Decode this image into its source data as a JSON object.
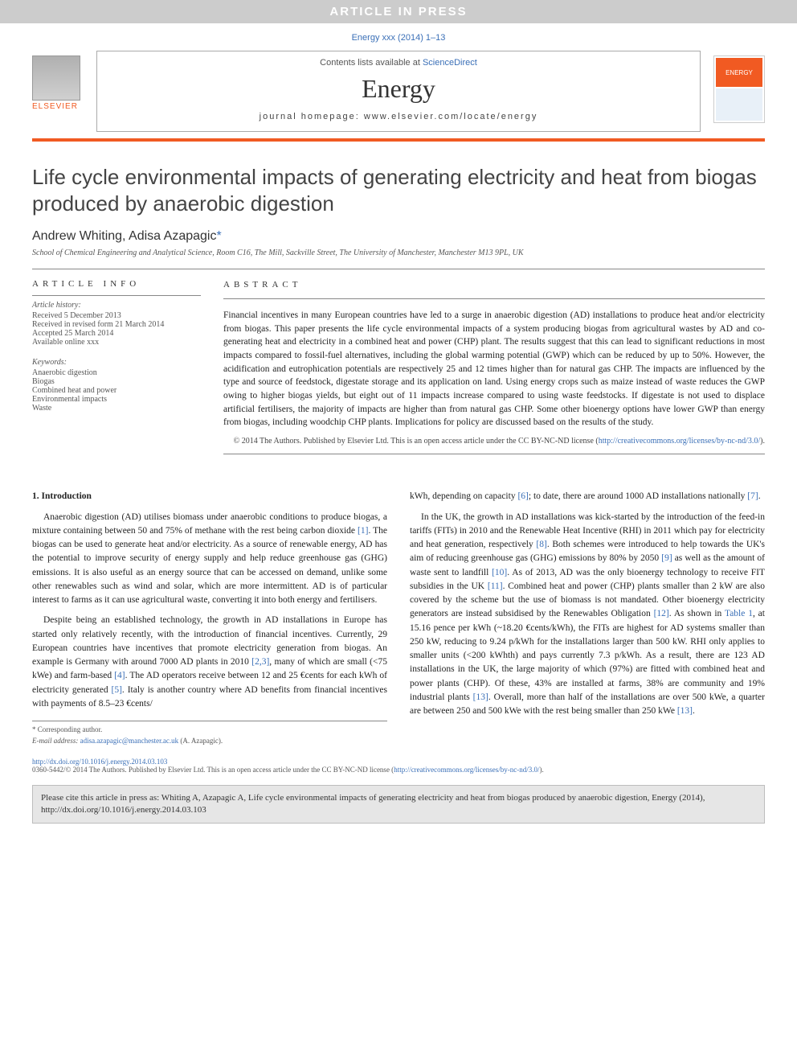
{
  "banner": "ARTICLE IN PRESS",
  "header_meta": "Energy xxx (2014) 1–13",
  "contents_line_pre": "Contents lists available at ",
  "contents_line_link": "ScienceDirect",
  "journal_name": "Energy",
  "homepage_line": "journal homepage: www.elsevier.com/locate/energy",
  "elsevier_label": "ELSEVIER",
  "cover_label": "ENERGY",
  "title": "Life cycle environmental impacts of generating electricity and heat from biogas produced by anaerobic digestion",
  "authors_pre": "Andrew Whiting, Adisa Azapagic",
  "corr_marker": "*",
  "affiliation": "School of Chemical Engineering and Analytical Science, Room C16, The Mill, Sackville Street, The University of Manchester, Manchester M13 9PL, UK",
  "info_head": "ARTICLE INFO",
  "abs_head": "ABSTRACT",
  "history": {
    "label": "Article history:",
    "received": "Received 5 December 2013",
    "revised": "Received in revised form 21 March 2014",
    "accepted": "Accepted 25 March 2014",
    "online": "Available online xxx"
  },
  "keywords": {
    "label": "Keywords:",
    "items": [
      "Anaerobic digestion",
      "Biogas",
      "Combined heat and power",
      "Environmental impacts",
      "Waste"
    ]
  },
  "abstract": "Financial incentives in many European countries have led to a surge in anaerobic digestion (AD) installations to produce heat and/or electricity from biogas. This paper presents the life cycle environmental impacts of a system producing biogas from agricultural wastes by AD and co-generating heat and electricity in a combined heat and power (CHP) plant. The results suggest that this can lead to significant reductions in most impacts compared to fossil-fuel alternatives, including the global warming potential (GWP) which can be reduced by up to 50%. However, the acidification and eutrophication potentials are respectively 25 and 12 times higher than for natural gas CHP. The impacts are influenced by the type and source of feedstock, digestate storage and its application on land. Using energy crops such as maize instead of waste reduces the GWP owing to higher biogas yields, but eight out of 11 impacts increase compared to using waste feedstocks. If digestate is not used to displace artificial fertilisers, the majority of impacts are higher than from natural gas CHP. Some other bioenergy options have lower GWP than energy from biogas, including woodchip CHP plants. Implications for policy are discussed based on the results of the study.",
  "copyright_line": "© 2014 The Authors. Published by Elsevier Ltd. This is an open access article under the CC BY-NC-ND license (",
  "copyright_link": "http://creativecommons.org/licenses/by-nc-nd/3.0/",
  "copyright_close": ").",
  "sec1_head": "1. Introduction",
  "col1_p1": "Anaerobic digestion (AD) utilises biomass under anaerobic conditions to produce biogas, a mixture containing between 50 and 75% of methane with the rest being carbon dioxide [1]. The biogas can be used to generate heat and/or electricity. As a source of renewable energy, AD has the potential to improve security of energy supply and help reduce greenhouse gas (GHG) emissions. It is also useful as an energy source that can be accessed on demand, unlike some other renewables such as wind and solar, which are more intermittent. AD is of particular interest to farms as it can use agricultural waste, converting it into both energy and fertilisers.",
  "col1_p2": "Despite being an established technology, the growth in AD installations in Europe has started only relatively recently, with the introduction of financial incentives. Currently, 29 European countries have incentives that promote electricity generation from biogas. An example is Germany with around 7000 AD plants in 2010 [2,3], many of which are small (<75 kWe) and farm-based [4]. The AD operators receive between 12 and 25 €cents for each kWh of electricity generated [5]. Italy is another country where AD benefits from financial incentives with payments of 8.5–23 €cents/",
  "col2_p0_tail": "kWh, depending on capacity [6]; to date, there are around 1000 AD installations nationally [7].",
  "col2_p1": "In the UK, the growth in AD installations was kick-started by the introduction of the feed-in tariffs (FITs) in 2010 and the Renewable Heat Incentive (RHI) in 2011 which pay for electricity and heat generation, respectively [8]. Both schemes were introduced to help towards the UK's aim of reducing greenhouse gas (GHG) emissions by 80% by 2050 [9] as well as the amount of waste sent to landfill [10]. As of 2013, AD was the only bioenergy technology to receive FIT subsidies in the UK [11]. Combined heat and power (CHP) plants smaller than 2 kW are also covered by the scheme but the use of biomass is not mandated. Other bioenergy electricity generators are instead subsidised by the Renewables Obligation [12]. As shown in Table 1, at 15.16 pence per kWh (~18.20 €cents/kWh), the FITs are highest for AD systems smaller than 250 kW, reducing to 9.24 p/kWh for the installations larger than 500 kW. RHI only applies to smaller units (<200 kWhth) and pays currently 7.3 p/kWh. As a result, there are 123 AD installations in the UK, the large majority of which (97%) are fitted with combined heat and power plants (CHP). Of these, 43% are installed at farms, 38% are community and 19% industrial plants [13]. Overall, more than half of the installations are over 500 kWe, a quarter are between 250 and 500 kWe with the rest being smaller than 250 kWe [13].",
  "footnote_corr": "* Corresponding author.",
  "footnote_email_label": "E-mail address: ",
  "footnote_email": "adisa.azapagic@manchester.ac.uk",
  "footnote_email_tail": " (A. Azapagic).",
  "doi_link": "http://dx.doi.org/10.1016/j.energy.2014.03.103",
  "issn_line": "0360-5442/© 2014 The Authors. Published by Elsevier Ltd. This is an open access article under the CC BY-NC-ND license (",
  "issn_link": "http://creativecommons.org/licenses/by-nc-nd/3.0/",
  "issn_close": ").",
  "cite_box": "Please cite this article in press as: Whiting A, Azapagic A, Life cycle environmental impacts of generating electricity and heat from biogas produced by anaerobic digestion, Energy (2014), http://dx.doi.org/10.1016/j.energy.2014.03.103",
  "colors": {
    "accent_orange": "#f15a22",
    "link_blue": "#3a6fb7",
    "banner_bg": "#cccccc",
    "citebox_bg": "#e6e6e6"
  },
  "references_inline": [
    "[1]",
    "[2,3]",
    "[4]",
    "[5]",
    "[6]",
    "[7]",
    "[8]",
    "[9]",
    "[10]",
    "[11]",
    "[12]",
    "[13]"
  ]
}
